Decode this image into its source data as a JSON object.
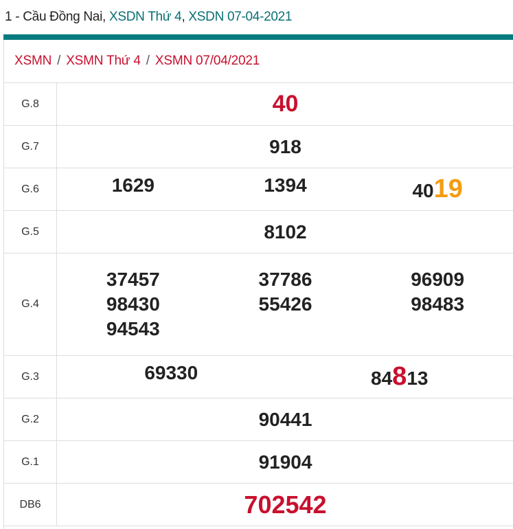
{
  "title": {
    "prefix": "1 - Cầu Đồng Nai, ",
    "link1": "XSDN Thứ 4",
    "sep": ", ",
    "link2": "XSDN 07-04-2021"
  },
  "breadcrumb": [
    "XSMN",
    "XSMN Thứ 4",
    "XSMN 07/04/2021"
  ],
  "breadcrumb_sep": "/",
  "colors": {
    "accent": "#077c80",
    "red": "#c8102e",
    "orange": "#f39c12"
  },
  "prizes": [
    {
      "label": "G.8",
      "numbers": [
        {
          "main": "",
          "hl": "40",
          "hl_color": "red"
        }
      ]
    },
    {
      "label": "G.7",
      "numbers": [
        {
          "main": "918",
          "hl": ""
        }
      ]
    },
    {
      "label": "G.6",
      "numbers": [
        {
          "main": "1629",
          "hl": ""
        },
        {
          "main": "1394",
          "hl": ""
        },
        {
          "main": "40",
          "hl": "19",
          "hl_color": "orange"
        }
      ]
    },
    {
      "label": "G.5",
      "numbers": [
        {
          "main": "8102",
          "hl": ""
        }
      ]
    },
    {
      "label": "G.4",
      "numbers": [
        {
          "main": "37457",
          "hl": ""
        },
        {
          "main": "37786",
          "hl": ""
        },
        {
          "main": "96909",
          "hl": ""
        },
        {
          "main": "9843",
          "hl": "0",
          "hl_color": "red"
        },
        {
          "main": "55426",
          "hl": ""
        },
        {
          "main": "98483",
          "hl": ""
        },
        {
          "main": "94543",
          "hl": ""
        }
      ]
    },
    {
      "label": "G.3",
      "numbers": [
        {
          "main": "69330",
          "hl": ""
        },
        {
          "main": "84",
          "hl": "8",
          "tail": "13",
          "hl_color": "red"
        }
      ]
    },
    {
      "label": "G.2",
      "numbers": [
        {
          "main": "90441",
          "hl": ""
        }
      ]
    },
    {
      "label": "G.1",
      "numbers": [
        {
          "main": "91904",
          "hl": ""
        }
      ]
    },
    {
      "label": "DB6",
      "numbers": [
        {
          "main": "",
          "hl": "702542",
          "hl_color": "red"
        }
      ]
    }
  ]
}
